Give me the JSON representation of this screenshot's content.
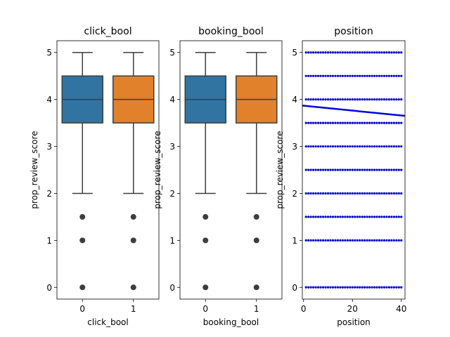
{
  "chart_data": [
    {
      "type": "box",
      "title": "click_bool",
      "xlabel": "click_bool",
      "ylabel": "prop_review_score",
      "ylim": [
        -0.25,
        5.25
      ],
      "y_ticks": [
        "0",
        "1",
        "2",
        "3",
        "4",
        "5"
      ],
      "categories": [
        "0",
        "1"
      ],
      "boxes": [
        {
          "category": "0",
          "whisker_low": 2.0,
          "q1": 3.5,
          "median": 4.0,
          "q3": 4.5,
          "whisker_high": 5.0,
          "outliers": [
            0.0,
            1.0,
            1.5
          ],
          "color": "#3274a1"
        },
        {
          "category": "1",
          "whisker_low": 2.0,
          "q1": 3.5,
          "median": 4.0,
          "q3": 4.5,
          "whisker_high": 5.0,
          "outliers": [
            0.0,
            1.0,
            1.5
          ],
          "color": "#e1812c"
        }
      ]
    },
    {
      "type": "box",
      "title": "booking_bool",
      "xlabel": "booking_bool",
      "ylabel": "prop_review_score",
      "ylim": [
        -0.25,
        5.25
      ],
      "y_ticks": [
        "0",
        "1",
        "2",
        "3",
        "4",
        "5"
      ],
      "categories": [
        "0",
        "1"
      ],
      "boxes": [
        {
          "category": "0",
          "whisker_low": 2.0,
          "q1": 3.5,
          "median": 4.0,
          "q3": 4.5,
          "whisker_high": 5.0,
          "outliers": [
            0.0,
            1.0,
            1.5
          ],
          "color": "#3274a1"
        },
        {
          "category": "1",
          "whisker_low": 2.0,
          "q1": 3.5,
          "median": 4.0,
          "q3": 4.5,
          "whisker_high": 5.0,
          "outliers": [
            0.0,
            1.0,
            1.5
          ],
          "color": "#e1812c"
        }
      ]
    },
    {
      "type": "scatter",
      "title": "position",
      "xlabel": "position",
      "ylabel": "prop_review_score",
      "xlim": [
        -0.5,
        41.5
      ],
      "ylim": [
        -0.25,
        5.25
      ],
      "x_ticks": [
        "0",
        "20",
        "40"
      ],
      "y_ticks": [
        "0",
        "1",
        "2",
        "3",
        "4",
        "5"
      ],
      "y_levels": [
        0,
        1,
        1.5,
        2,
        2.5,
        3,
        3.5,
        4,
        4.5,
        5
      ],
      "x_range": [
        1,
        40
      ],
      "point_color": "#0000cc",
      "regression": {
        "x": [
          -0.5,
          41.5
        ],
        "y": [
          3.87,
          3.65
        ],
        "color": "#0000dd"
      }
    }
  ]
}
